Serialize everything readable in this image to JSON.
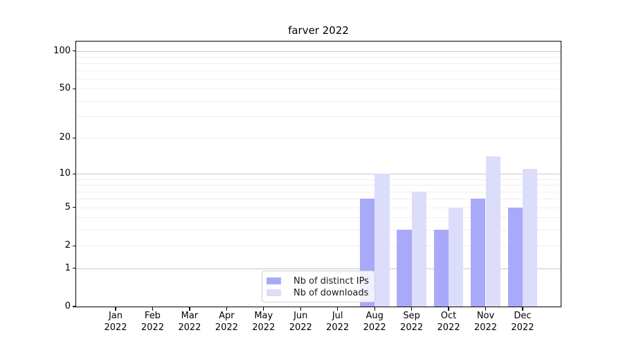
{
  "figure": {
    "title": "farver 2022"
  },
  "chart_data": {
    "type": "bar",
    "title": "farver 2022",
    "xlabel": "",
    "ylabel": "",
    "yscale": "log1p",
    "categories": [
      "Jan 2022",
      "Feb 2022",
      "Mar 2022",
      "Apr 2022",
      "May 2022",
      "Jun 2022",
      "Jul 2022",
      "Aug 2022",
      "Sep 2022",
      "Oct 2022",
      "Nov 2022",
      "Dec 2022"
    ],
    "series": [
      {
        "name": "Nb of distinct IPs",
        "color": "#a9a9f9",
        "values": [
          0,
          0,
          0,
          0,
          0,
          0,
          0,
          6,
          3,
          3,
          6,
          5
        ]
      },
      {
        "name": "Nb of downloads",
        "color": "#dcdcfb",
        "values": [
          0,
          0,
          0,
          0,
          0,
          0,
          0,
          10,
          7,
          5,
          14,
          11
        ]
      }
    ],
    "yticks": [
      0,
      1,
      2,
      5,
      10,
      20,
      50,
      100
    ],
    "major_gridlines": [
      1,
      10,
      100
    ],
    "minor_gridlines": [
      2,
      3,
      4,
      5,
      6,
      7,
      8,
      9,
      20,
      30,
      40,
      50,
      60,
      70,
      80,
      90
    ],
    "ylim": [
      0,
      119
    ],
    "grid": "on",
    "legend_position": "lower center"
  },
  "colors": {
    "series_ips": "#a9a9f9",
    "series_downloads": "#dcdcfb",
    "grid_major": "#c8c8c8",
    "grid_minor": "#efefef",
    "spine": "#000000",
    "background": "#ffffff"
  }
}
